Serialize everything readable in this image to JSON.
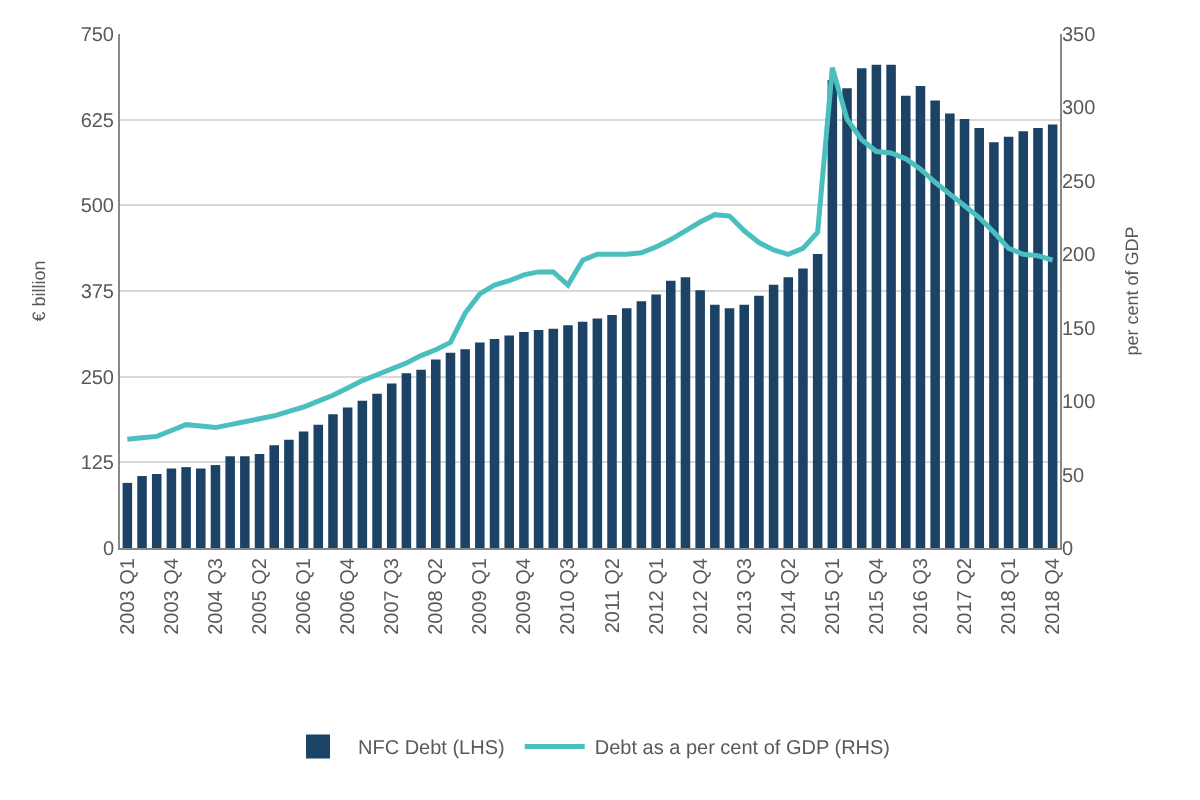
{
  "chart_data": {
    "type": "bar",
    "ylabel": "€ billion",
    "y2label": "per cent of GDP",
    "categories": [
      "2003 Q1",
      null,
      null,
      "2003 Q4",
      null,
      null,
      "2004 Q3",
      null,
      null,
      "2005 Q2",
      null,
      null,
      "2006 Q1",
      null,
      null,
      "2006 Q4",
      null,
      null,
      "2007 Q3",
      null,
      null,
      "2008 Q2",
      null,
      null,
      "2009 Q1",
      null,
      null,
      "2009 Q4",
      null,
      null,
      "2010 Q3",
      null,
      null,
      "2011 Q2",
      null,
      null,
      "2012 Q1",
      null,
      null,
      "2012 Q4",
      null,
      null,
      "2013 Q3",
      null,
      null,
      "2014 Q2",
      null,
      null,
      "2015 Q1",
      null,
      null,
      "2015 Q4",
      null,
      null,
      "2016 Q3",
      null,
      null,
      "2017 Q2",
      null,
      null,
      "2018 Q1",
      null,
      null,
      "2018 Q4"
    ],
    "series": [
      {
        "name": "NFC Debt (LHS)",
        "color": "#1c4266",
        "values": [
          95,
          105,
          108,
          116,
          118,
          116,
          121,
          134,
          134,
          137,
          150,
          158,
          170,
          180,
          195,
          205,
          215,
          225,
          240,
          255,
          260,
          275,
          285,
          290,
          300,
          305,
          310,
          315,
          318,
          320,
          325,
          330,
          335,
          340,
          350,
          360,
          370,
          390,
          395,
          376,
          355,
          350,
          355,
          368,
          384,
          395,
          408,
          429,
          683,
          671,
          700,
          705,
          705,
          660,
          674,
          653,
          634,
          626,
          613,
          592,
          600,
          608,
          613,
          618
        ]
      },
      {
        "name": "Debt as a per cent of GDP (RHS)",
        "type": "line",
        "axis": "y2",
        "color": "#4bbfbf",
        "values": [
          74,
          75,
          76,
          80,
          84,
          83,
          82,
          84,
          86,
          88,
          90,
          93,
          96,
          100,
          104,
          109,
          114,
          118,
          122,
          126,
          131,
          135,
          140,
          160,
          173,
          179,
          182,
          186,
          188,
          188,
          179,
          196,
          200,
          200,
          200,
          201,
          205,
          210,
          216,
          222,
          227,
          226,
          216,
          208,
          203,
          200,
          204,
          215,
          327,
          292,
          278,
          270,
          269,
          265,
          258,
          249,
          241,
          233,
          225,
          215,
          204,
          200,
          199,
          196
        ]
      }
    ],
    "ylim": [
      0,
      750
    ],
    "yticks": [
      0,
      125,
      250,
      375,
      500,
      625,
      750
    ],
    "y2lim": [
      0,
      350
    ],
    "y2ticks": [
      0,
      50,
      100,
      150,
      200,
      250,
      300,
      350
    ],
    "grid": "y",
    "legend": "bottom",
    "marker": "none",
    "line_style": "solid"
  }
}
